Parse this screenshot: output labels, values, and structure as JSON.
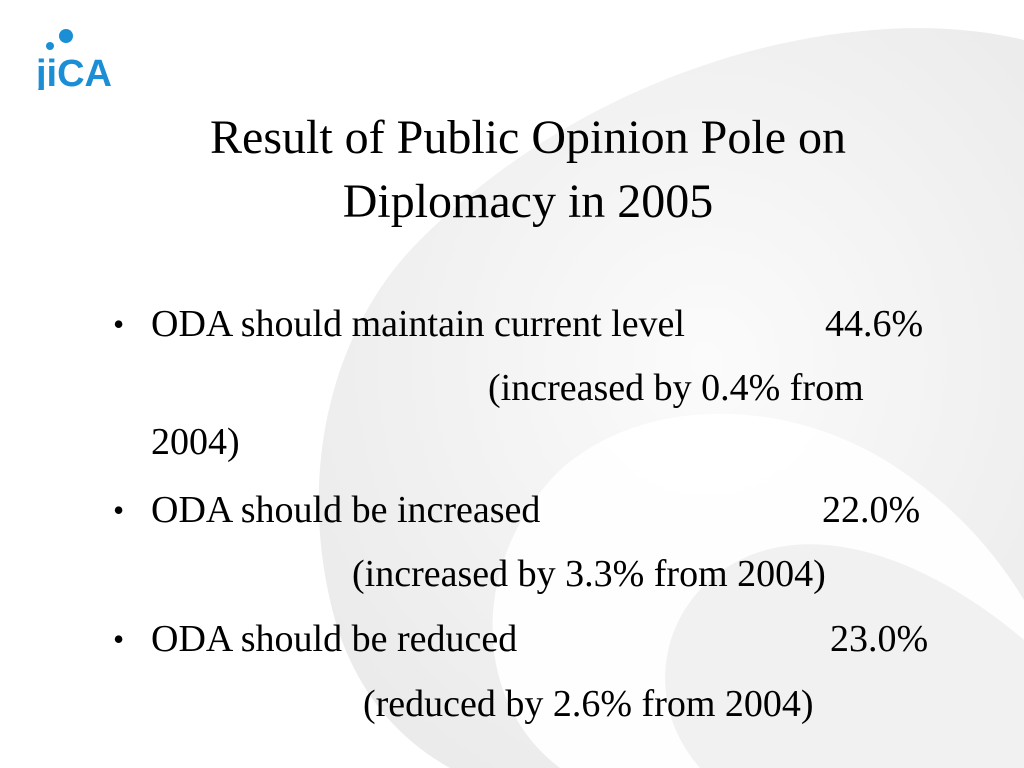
{
  "logo": {
    "text": "jiCA"
  },
  "title": {
    "line1": "Result of Public Opinion Pole on",
    "line2": "Diplomacy in  2005"
  },
  "bullets": [
    {
      "label": "ODA should maintain current level",
      "value": "44.6%",
      "note_line1": "(increased by 0.4% from",
      "note_line2": "2004)"
    },
    {
      "label": "ODA should be increased",
      "value": "22.0%",
      "note": "(increased by 3.3% from 2004)"
    },
    {
      "label": "ODA should be reduced",
      "value": "23.0%",
      "note": "(reduced by 2.6% from 2004)"
    }
  ],
  "colors": {
    "logo_blue": "#1b8fd6",
    "swirl_gray": "#e9e9e9"
  }
}
